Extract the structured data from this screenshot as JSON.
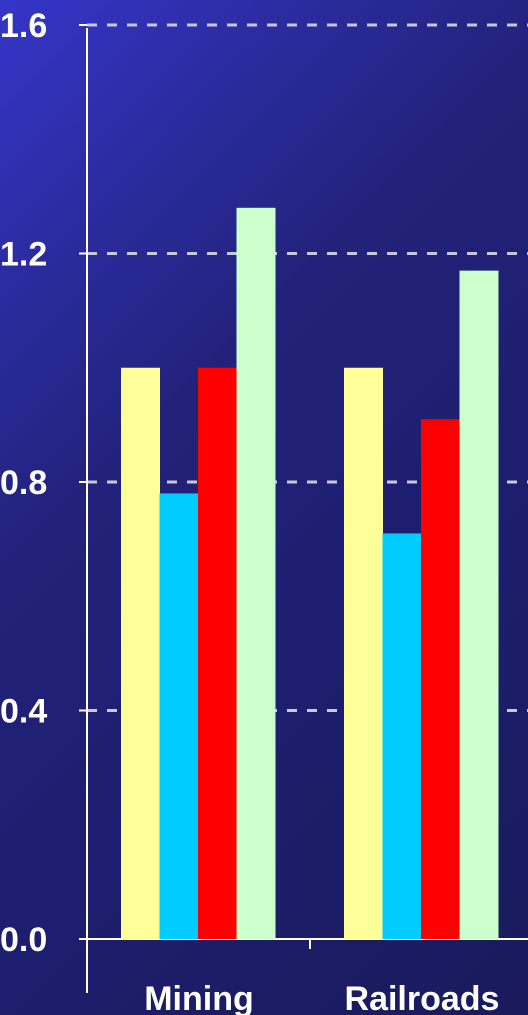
{
  "chart_data": {
    "type": "bar",
    "title": "",
    "xlabel": "",
    "ylabel": "",
    "categories": [
      "Mining",
      "Railroads"
    ],
    "series": [
      {
        "color": "#ffff99",
        "values": [
          1.0,
          1.0
        ]
      },
      {
        "color": "#00ccff",
        "values": [
          0.78,
          0.71
        ]
      },
      {
        "color": "#ff0000",
        "values": [
          1.0,
          0.91
        ]
      },
      {
        "color": "#ccffcc",
        "values": [
          1.28,
          1.17
        ]
      }
    ],
    "ylim": [
      0.0,
      1.6
    ],
    "yticks": [
      "0.0",
      "0.4",
      "0.8",
      "1.2",
      "1.6"
    ],
    "grid": "horizontal-dashed",
    "legend": "none"
  }
}
